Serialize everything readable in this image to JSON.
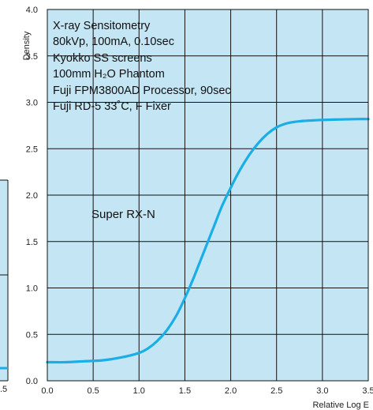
{
  "chart_data": {
    "type": "line",
    "ylabel": "Density",
    "xlabel": "Relative Log E",
    "xlim": [
      0,
      3.5
    ],
    "ylim": [
      0,
      4
    ],
    "x_ticks": [
      "0.0",
      "0.5",
      "1.0",
      "1.5",
      "2.0",
      "2.5",
      "3.0",
      "3.5"
    ],
    "y_ticks": [
      "0.0",
      "0.5",
      "1.0",
      "1.5",
      "2.0",
      "2.5",
      "3.0",
      "3.5",
      "4.0"
    ],
    "grid": true,
    "annotation_lines": [
      "X-ray Sensitometry",
      "80kVp, 100mA, 0.10sec",
      "Kyokko SS screens",
      "100mm H₂O Phantom",
      "Fuji FPM3800AD Processor, 90sec",
      "Fuji RD-5 33˚C, F Fixer"
    ],
    "series": [
      {
        "name": "Super RX-N",
        "color": "#19aee6",
        "x": [
          0.0,
          0.2,
          0.4,
          0.6,
          0.8,
          1.0,
          1.1,
          1.2,
          1.3,
          1.4,
          1.5,
          1.6,
          1.7,
          1.8,
          1.9,
          2.0,
          2.1,
          2.2,
          2.3,
          2.4,
          2.5,
          2.6,
          2.7,
          2.8,
          2.9,
          3.0,
          3.2,
          3.4,
          3.5
        ],
        "y": [
          0.2,
          0.2,
          0.21,
          0.22,
          0.25,
          0.3,
          0.35,
          0.43,
          0.54,
          0.69,
          0.89,
          1.12,
          1.37,
          1.62,
          1.87,
          2.08,
          2.27,
          2.43,
          2.56,
          2.66,
          2.73,
          2.77,
          2.79,
          2.8,
          2.805,
          2.81,
          2.815,
          2.82,
          2.82
        ]
      }
    ],
    "colors": {
      "plot_background": "#c4e5f4",
      "grid": "#111111",
      "curve": "#19aee6"
    },
    "partial_chart_left": {
      "curve_level_label": ".5"
    }
  }
}
